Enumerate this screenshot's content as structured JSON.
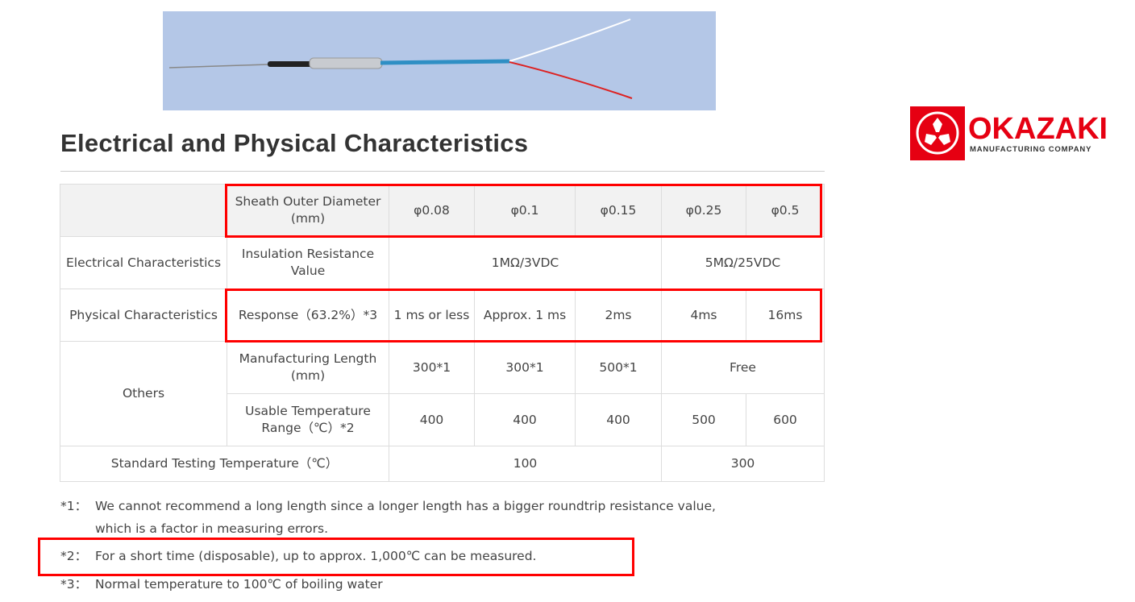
{
  "logo": {
    "name": "OKAZAKI",
    "sub": "MANUFACTURING COMPANY",
    "color": "#e60012"
  },
  "title": "Electrical and Physical Characteristics",
  "table": {
    "header": {
      "label": "Sheath Outer Diameter (mm)",
      "values": [
        "φ0.08",
        "φ0.1",
        "φ0.15",
        "φ0.25",
        "φ0.5"
      ]
    },
    "electrical": {
      "group": "Electrical Characteristics",
      "label": "Insulation Resistance Value",
      "v1": "1MΩ/3VDC",
      "v2": "5MΩ/25VDC"
    },
    "physical": {
      "group": "Physical Characteristics",
      "label": "Response（63.2%）*3",
      "values": [
        "1 ms or less",
        "Approx. 1 ms",
        "2ms",
        "4ms",
        "16ms"
      ]
    },
    "others": {
      "group": "Others",
      "length_label": "Manufacturing Length (mm)",
      "length": [
        "300*1",
        "300*1",
        "500*1",
        "Free"
      ],
      "temp_label": "Usable Temperature Range（℃）*2",
      "temp": [
        "400",
        "400",
        "400",
        "500",
        "600"
      ]
    },
    "standard": {
      "label": "Standard Testing Temperature（℃）",
      "v1": "100",
      "v2": "300"
    }
  },
  "notes": [
    {
      "mark": "*1：",
      "text": "We cannot recommend a long length since a longer length has a bigger roundtrip resistance value,",
      "text2": "which is a factor in measuring errors."
    },
    {
      "mark": "*2：",
      "text": "For a short time (disposable), up to approx. 1,000℃ can be measured."
    },
    {
      "mark": "*3：",
      "text": "Normal temperature to 100℃ of boiling water"
    }
  ],
  "highlight_color": "#ff0000"
}
